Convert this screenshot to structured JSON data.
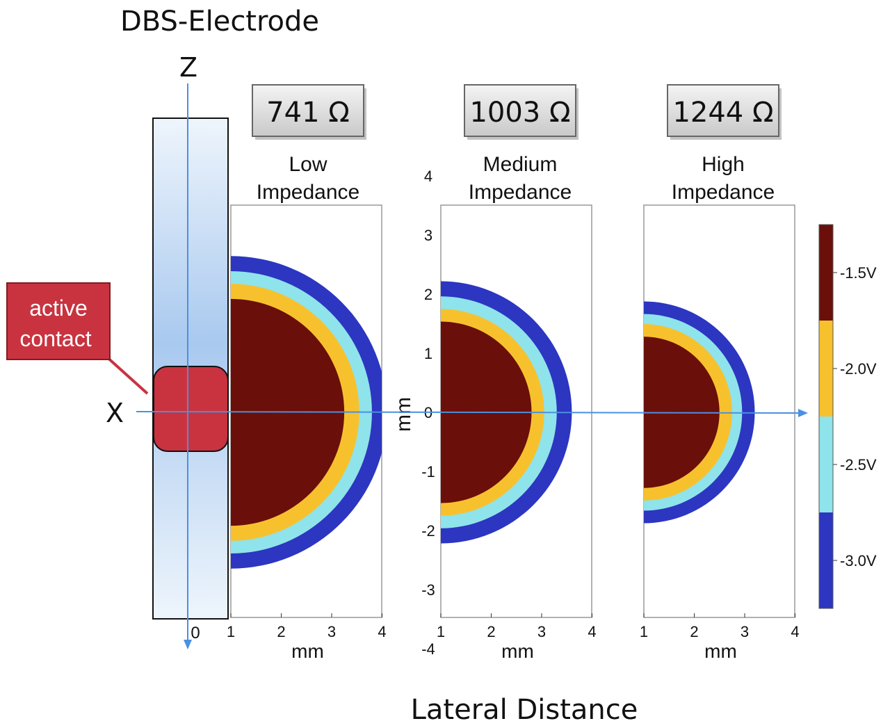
{
  "title": "DBS-Electrode",
  "axes": {
    "z_label": "Z",
    "x_label": "X",
    "zero_label": "0"
  },
  "callout": {
    "line1": "active",
    "line2": "contact"
  },
  "panels": [
    {
      "impedance": "741 Ω",
      "level": "Low",
      "word": "Impedance",
      "radii_mm": [
        2.25,
        2.55,
        2.8,
        3.1
      ]
    },
    {
      "impedance": "1003 Ω",
      "level": "Medium",
      "word": "Impedance",
      "radii_mm": [
        1.8,
        2.05,
        2.3,
        2.6
      ]
    },
    {
      "impedance": "1244 Ω",
      "level": "High",
      "word": "Impedance",
      "radii_mm": [
        1.5,
        1.75,
        1.95,
        2.2
      ]
    }
  ],
  "panel_axis": {
    "x_ticks": [
      "1",
      "2",
      "3",
      "4"
    ],
    "x_label": "mm",
    "y_ticks": [
      "4",
      "3",
      "2",
      "1",
      "0",
      "-1",
      "-2",
      "-3",
      "-4"
    ],
    "y_label": "mm"
  },
  "colorbar": {
    "labels": [
      "-1.5V",
      "-2.0V",
      "-2.5V",
      "-3.0V"
    ],
    "colors": [
      "#6b0f0a",
      "#f7c12e",
      "#8fe3ea",
      "#2c36c0"
    ]
  },
  "bottom_label": "Lateral Distance"
}
